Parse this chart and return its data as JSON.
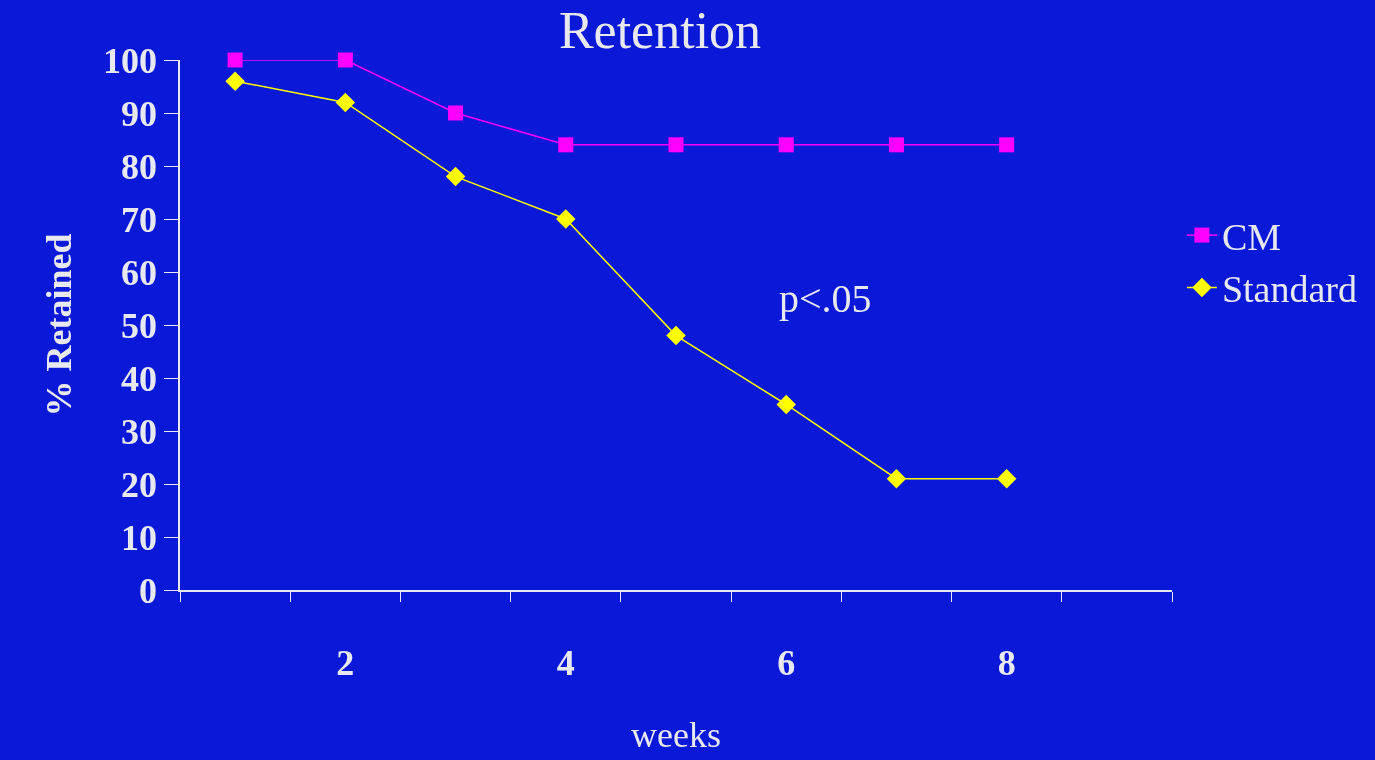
{
  "chart_data": {
    "type": "line",
    "title": "Retention",
    "xlabel": "weeks",
    "ylabel": "% Retained",
    "categories": [
      null,
      "2",
      null,
      "4",
      null,
      "6",
      null,
      "8",
      null
    ],
    "series": [
      {
        "name": "CM",
        "color": "#ff00ff",
        "marker": "square",
        "values": [
          100,
          100,
          90,
          84,
          84,
          84,
          84,
          84,
          null
        ]
      },
      {
        "name": "Standard",
        "color": "#ffff00",
        "marker": "diamond",
        "values": [
          96,
          92,
          78,
          70,
          48,
          35,
          21,
          21,
          null
        ]
      }
    ],
    "ylim": [
      0,
      100
    ],
    "yticks": [
      0,
      10,
      20,
      30,
      40,
      50,
      60,
      70,
      80,
      90,
      100
    ],
    "annotations": [
      "p<.05"
    ],
    "grid": false,
    "legend": "right",
    "line_style": "solid"
  }
}
